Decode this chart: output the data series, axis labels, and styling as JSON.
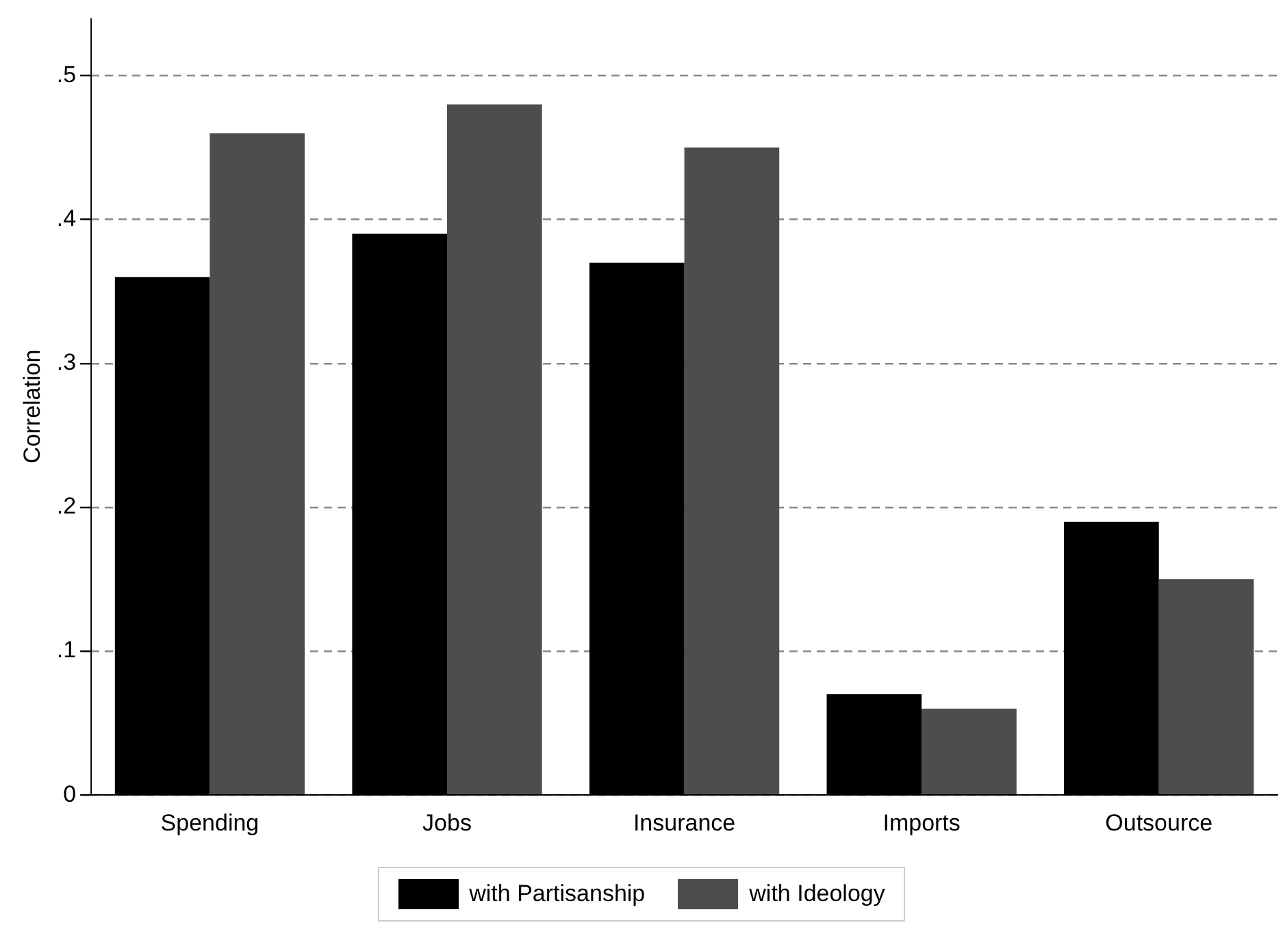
{
  "chart_data": {
    "type": "bar",
    "ylabel": "Correlation",
    "categories": [
      "Spending",
      "Jobs",
      "Insurance",
      "Imports",
      "Outsource"
    ],
    "series": [
      {
        "name": "with Partisanship",
        "color": "#000000",
        "values": [
          0.36,
          0.39,
          0.37,
          0.07,
          0.19
        ]
      },
      {
        "name": "with Ideology",
        "color": "#4d4d4d",
        "values": [
          0.46,
          0.48,
          0.45,
          0.06,
          0.15
        ]
      }
    ],
    "ylim": [
      0,
      0.54
    ],
    "yticks": [
      {
        "value": 0,
        "label": "0"
      },
      {
        "value": 0.1,
        "label": ".1"
      },
      {
        "value": 0.2,
        "label": ".2"
      },
      {
        "value": 0.3,
        "label": ".3"
      },
      {
        "value": 0.4,
        "label": ".4"
      },
      {
        "value": 0.5,
        "label": ".5"
      }
    ],
    "grid": "y",
    "legend": "bottom"
  }
}
